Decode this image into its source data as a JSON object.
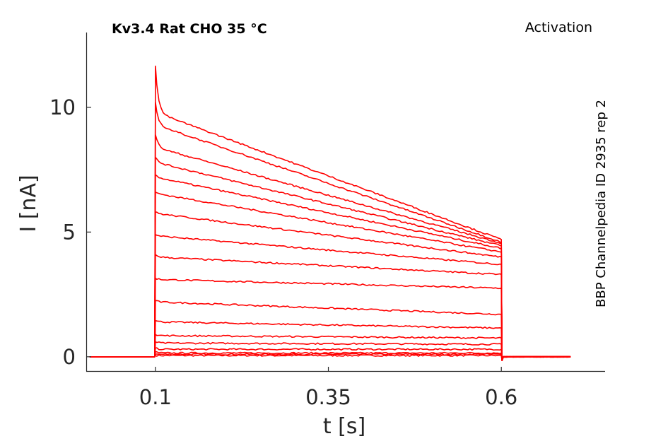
{
  "chart_data": {
    "type": "line",
    "title": "Kv3.4  Rat  CHO  35 °C",
    "protocol": "Activation",
    "source": "BBP Channelpedia ID 2935 rep 2",
    "xlabel": "t [s]",
    "ylabel": "I [nA]",
    "xlim": [
      0.0,
      0.75
    ],
    "ylim": [
      -0.6,
      13.0
    ],
    "x_ticks": [
      0.1,
      0.35,
      0.6
    ],
    "x_tick_labels": [
      "0.1",
      "0.35",
      "0.6"
    ],
    "y_ticks": [
      0,
      5,
      10
    ],
    "y_tick_labels": [
      "0",
      "5",
      "10"
    ],
    "grid": false,
    "line_color": "#ff0000",
    "step_on": 0.1,
    "step_off": 0.6,
    "baseline_range": [
      0.005,
      0.7
    ],
    "traces": [
      {
        "peak": 0.05,
        "start": 0.05,
        "end": 0.05
      },
      {
        "peak": 0.1,
        "start": 0.1,
        "end": 0.1
      },
      {
        "peak": 0.2,
        "start": 0.15,
        "end": 0.15
      },
      {
        "peak": 0.35,
        "start": 0.3,
        "end": 0.3
      },
      {
        "peak": 0.6,
        "start": 0.55,
        "end": 0.5
      },
      {
        "peak": 0.9,
        "start": 0.85,
        "end": 0.75
      },
      {
        "peak": 1.45,
        "start": 1.4,
        "end": 1.15
      },
      {
        "peak": 2.25,
        "start": 2.2,
        "end": 1.7
      },
      {
        "peak": 3.15,
        "start": 3.1,
        "end": 2.75
      },
      {
        "peak": 4.1,
        "start": 4.0,
        "end": 3.3
      },
      {
        "peak": 4.9,
        "start": 4.85,
        "end": 3.7
      },
      {
        "peak": 5.8,
        "start": 5.75,
        "end": 4.0
      },
      {
        "peak": 6.6,
        "start": 6.55,
        "end": 4.2
      },
      {
        "peak": 7.3,
        "start": 7.2,
        "end": 4.35
      },
      {
        "peak": 8.0,
        "start": 7.8,
        "end": 4.45
      },
      {
        "peak": 8.9,
        "start": 8.4,
        "end": 4.55
      },
      {
        "peak": 10.2,
        "start": 9.3,
        "end": 4.6
      },
      {
        "peak": 11.65,
        "start": 9.8,
        "end": 4.7
      }
    ]
  }
}
